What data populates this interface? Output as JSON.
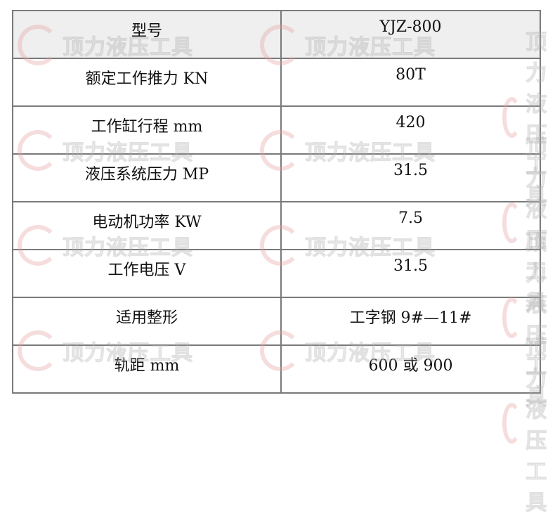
{
  "watermark": "顶力液压工具",
  "table": {
    "rows": [
      {
        "param": "型号",
        "value": "YJZ-800"
      },
      {
        "param": "额定工作推力  KN",
        "value": "80T"
      },
      {
        "param": "工作缸行程 mm",
        "value": "420"
      },
      {
        "param": "液压系统压力 MP",
        "value": "31.5"
      },
      {
        "param": "电动机功率 KW",
        "value": "7.5"
      },
      {
        "param": "工作电压 V",
        "value": "31.5"
      },
      {
        "param": "适用整形",
        "value": "工字钢 9#—11#"
      },
      {
        "param": "轨距 mm",
        "value": "600 或 900"
      }
    ]
  }
}
